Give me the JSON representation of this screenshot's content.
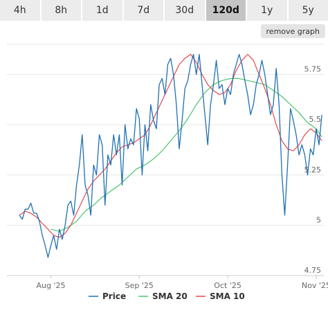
{
  "tabs": [
    {
      "label": "4h",
      "active": false
    },
    {
      "label": "8h",
      "active": false
    },
    {
      "label": "1d",
      "active": false
    },
    {
      "label": "7d",
      "active": false
    },
    {
      "label": "30d",
      "active": false
    },
    {
      "label": "120d",
      "active": true
    },
    {
      "label": "1y",
      "active": false
    },
    {
      "label": "5y",
      "active": false
    }
  ],
  "remove_graph_label": "remove graph",
  "colors": {
    "price": "#1f6fb2",
    "sma20": "#4cc46a",
    "sma10": "#e5484d",
    "grid": "#e6e6e6"
  },
  "chart_data": {
    "type": "line",
    "x_tick_labels": [
      "Aug '25",
      "Sep '25",
      "Oct '25",
      "Nov '25"
    ],
    "x_tick_positions": [
      11,
      42,
      73,
      104
    ],
    "x_range": [
      -4.4,
      106.7
    ],
    "ylim": [
      4.75,
      5.9
    ],
    "y_ticks": [
      4.75,
      5,
      5.25,
      5.5,
      5.75
    ],
    "y_tick_labels": [
      "4.75",
      "5",
      "5.25",
      "5.5",
      "5.75"
    ],
    "grid": true,
    "legend_position": "bottom",
    "series": [
      {
        "name": "Price",
        "color_key": "price",
        "x": [
          0,
          1,
          2,
          3,
          4,
          5,
          6,
          7,
          8,
          9,
          10,
          11,
          12,
          13,
          14,
          15,
          16,
          17,
          18,
          19,
          20,
          21,
          22,
          23,
          24,
          25,
          26,
          27,
          28,
          29,
          30,
          31,
          32,
          33,
          34,
          35,
          36,
          37,
          38,
          39,
          40,
          41,
          42,
          43,
          44,
          45,
          46,
          47,
          48,
          49,
          50,
          51,
          52,
          53,
          54,
          55,
          56,
          57,
          58,
          59,
          60,
          61,
          62,
          63,
          64,
          65,
          66,
          67,
          68,
          69,
          70,
          71,
          72,
          73,
          74,
          75,
          76,
          77,
          78,
          79,
          80,
          81,
          82,
          83,
          84,
          85,
          86,
          87,
          88,
          89,
          90,
          91,
          92,
          93,
          94,
          95,
          96,
          97,
          98,
          99,
          100,
          101,
          102,
          103,
          104,
          105,
          106
        ],
        "values": [
          5.05,
          5.03,
          5.08,
          5.08,
          5.11,
          5.06,
          5.06,
          5.02,
          4.95,
          4.9,
          4.84,
          4.9,
          4.95,
          4.88,
          4.98,
          4.93,
          5.0,
          5.1,
          5.12,
          5.05,
          5.2,
          5.3,
          5.45,
          5.2,
          5.15,
          5.05,
          5.3,
          5.25,
          5.45,
          5.4,
          5.1,
          5.35,
          5.3,
          5.45,
          5.35,
          5.45,
          5.2,
          5.5,
          5.38,
          5.43,
          5.4,
          5.58,
          5.53,
          5.25,
          5.5,
          5.37,
          5.6,
          5.52,
          5.48,
          5.7,
          5.73,
          5.65,
          5.8,
          5.83,
          5.75,
          5.6,
          5.38,
          5.52,
          5.68,
          5.72,
          5.8,
          5.85,
          5.75,
          5.85,
          5.7,
          5.55,
          5.4,
          5.6,
          5.7,
          5.82,
          5.68,
          5.7,
          5.6,
          5.68,
          5.65,
          5.75,
          5.8,
          5.85,
          5.8,
          5.72,
          5.65,
          5.55,
          5.6,
          5.7,
          5.75,
          5.82,
          5.75,
          5.65,
          5.55,
          5.6,
          5.78,
          5.6,
          5.25,
          5.05,
          5.3,
          5.58,
          5.52,
          5.45,
          5.35,
          5.4,
          5.35,
          5.25,
          5.38,
          5.35,
          5.48,
          5.4,
          5.55
        ]
      },
      {
        "name": "SMA 20",
        "color_key": "sma20",
        "x": [
          11,
          14,
          17,
          20,
          23,
          26,
          29,
          32,
          35,
          38,
          41,
          44,
          47,
          50,
          53,
          56,
          59,
          62,
          65,
          68,
          71,
          74,
          77,
          80,
          83,
          86,
          89,
          92,
          95,
          98,
          101,
          104,
          106
        ],
        "values": [
          4.98,
          4.97,
          4.99,
          5.02,
          5.07,
          5.1,
          5.14,
          5.17,
          5.2,
          5.24,
          5.28,
          5.3,
          5.33,
          5.37,
          5.42,
          5.47,
          5.53,
          5.6,
          5.66,
          5.7,
          5.72,
          5.73,
          5.73,
          5.72,
          5.71,
          5.7,
          5.67,
          5.64,
          5.6,
          5.56,
          5.51,
          5.48,
          5.44
        ]
      },
      {
        "name": "SMA 10",
        "color_key": "sma10",
        "x": [
          0,
          2,
          4,
          6,
          8,
          10,
          12,
          14,
          16,
          18,
          20,
          22,
          24,
          26,
          28,
          30,
          32,
          34,
          36,
          38,
          40,
          42,
          44,
          46,
          48,
          50,
          52,
          54,
          56,
          58,
          60,
          62,
          64,
          66,
          68,
          70,
          72,
          74,
          76,
          78,
          80,
          82,
          84,
          86,
          88,
          90,
          92,
          94,
          96,
          98,
          100,
          102,
          104,
          106
        ],
        "values": [
          5.05,
          5.07,
          5.06,
          5.04,
          5.01,
          4.98,
          4.95,
          4.94,
          4.96,
          5.0,
          5.06,
          5.12,
          5.18,
          5.22,
          5.25,
          5.28,
          5.32,
          5.36,
          5.39,
          5.4,
          5.41,
          5.43,
          5.45,
          5.5,
          5.56,
          5.62,
          5.68,
          5.74,
          5.8,
          5.83,
          5.85,
          5.81,
          5.75,
          5.7,
          5.67,
          5.65,
          5.66,
          5.7,
          5.77,
          5.82,
          5.85,
          5.82,
          5.75,
          5.68,
          5.6,
          5.5,
          5.42,
          5.38,
          5.37,
          5.4,
          5.45,
          5.48,
          5.46,
          5.42
        ]
      }
    ]
  }
}
